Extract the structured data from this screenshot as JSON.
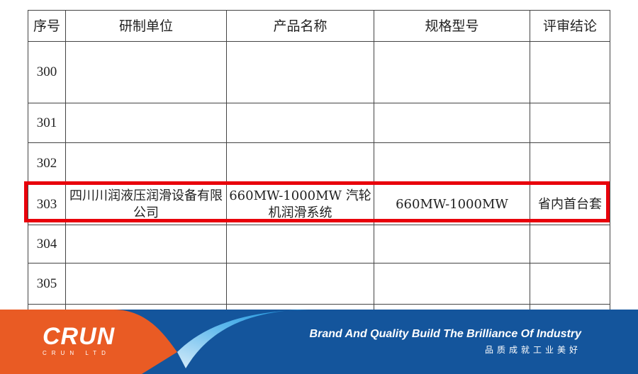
{
  "table": {
    "headers": [
      "序号",
      "研制单位",
      "产品名称",
      "规格型号",
      "评审结论"
    ],
    "rows": [
      {
        "no": "300",
        "blurred": true
      },
      {
        "no": "301",
        "blurred": true
      },
      {
        "no": "302",
        "blurred": true
      },
      {
        "no": "303",
        "blurred": false,
        "unit": "四川川润液压润滑设备有限公司",
        "product": "660MW-1000MW 汽轮机润滑系统",
        "spec": "660MW-1000MW",
        "conclusion": "省内首台套"
      },
      {
        "no": "304",
        "blurred": true
      },
      {
        "no": "305",
        "blurred": true
      },
      {
        "no": "",
        "blurred": true
      }
    ],
    "highlight_color": "#e8000b"
  },
  "banner": {
    "logo": "CRUN",
    "logo_sub": "CRUN LTD",
    "slogan": "Brand And Quality Build The Brilliance Of Industry",
    "slogan_cn": "品质成就工业美好",
    "colors": {
      "orange": "#e95b24",
      "blue": "#14559c",
      "light_blue": "#1f9be0"
    }
  }
}
